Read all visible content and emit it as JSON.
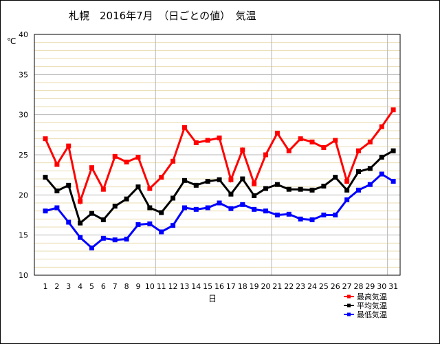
{
  "chart_data": {
    "type": "line",
    "title": "札幌　2016年7月　（日ごとの値）　気温",
    "xlabel": "日",
    "ylabel": "℃",
    "ylim": [
      10,
      40
    ],
    "y_ticks": [
      "10",
      "15",
      "20",
      "25",
      "30",
      "35",
      "40"
    ],
    "x_ticks": [
      "1",
      "2",
      "3",
      "4",
      "5",
      "6",
      "7",
      "8",
      "9",
      "10",
      "11",
      "12",
      "13",
      "14",
      "15",
      "16",
      "17",
      "18",
      "19",
      "20",
      "21",
      "22",
      "23",
      "24",
      "25",
      "26",
      "27",
      "28",
      "29",
      "30",
      "31"
    ],
    "x": [
      1,
      2,
      3,
      4,
      5,
      6,
      7,
      8,
      9,
      10,
      11,
      12,
      13,
      14,
      15,
      16,
      17,
      18,
      19,
      20,
      21,
      22,
      23,
      24,
      25,
      26,
      27,
      28,
      29,
      30,
      31
    ],
    "grid": true,
    "legend_position": "bottom-right",
    "series": [
      {
        "name": "最高気温",
        "color": "#ff0000",
        "values": [
          27.0,
          23.8,
          26.1,
          19.2,
          23.4,
          20.7,
          24.8,
          24.1,
          24.7,
          20.8,
          22.2,
          24.2,
          28.4,
          26.5,
          26.8,
          27.1,
          21.9,
          25.6,
          21.4,
          25.0,
          27.7,
          25.5,
          27.0,
          26.6,
          25.9,
          26.8,
          21.7,
          25.5,
          26.6,
          28.5,
          30.6
        ]
      },
      {
        "name": "平均気温",
        "color": "#000000",
        "values": [
          22.2,
          20.5,
          21.2,
          16.5,
          17.7,
          16.9,
          18.6,
          19.5,
          21.0,
          18.4,
          17.8,
          19.6,
          21.8,
          21.2,
          21.7,
          21.9,
          20.1,
          22.0,
          19.9,
          20.8,
          21.3,
          20.7,
          20.7,
          20.6,
          21.1,
          22.2,
          20.6,
          22.9,
          23.3,
          24.7,
          25.5
        ]
      },
      {
        "name": "最低気温",
        "color": "#0000ff",
        "values": [
          18.0,
          18.4,
          16.6,
          14.7,
          13.4,
          14.6,
          14.4,
          14.5,
          16.3,
          16.4,
          15.4,
          16.2,
          18.4,
          18.2,
          18.4,
          19.0,
          18.3,
          18.8,
          18.2,
          18.0,
          17.5,
          17.6,
          17.0,
          16.9,
          17.5,
          17.5,
          19.4,
          20.6,
          21.3,
          22.6,
          21.7
        ]
      }
    ]
  }
}
